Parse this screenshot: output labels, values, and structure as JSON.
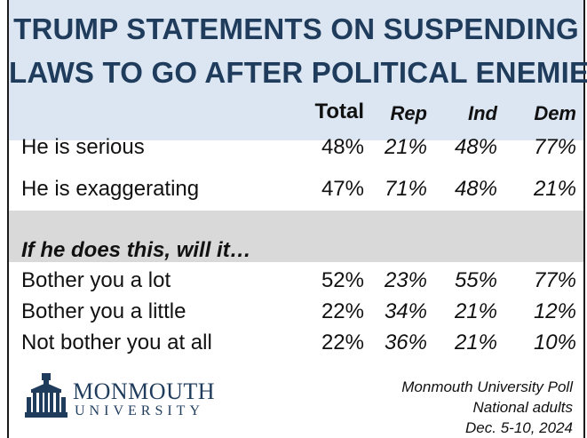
{
  "title": {
    "line1": "TRUMP STATEMENTS ON SUSPENDING",
    "line2": "LAWS TO GO AFTER POLITICAL ENEMIES"
  },
  "columns": [
    "Total",
    "Rep",
    "Ind",
    "Dem"
  ],
  "section_heading": "If he does this, will it…",
  "logo": {
    "name": "MONMOUTH",
    "sub": "UNIVERSITY",
    "icon": "monmouth-building-icon"
  },
  "source": [
    "Monmouth University Poll",
    "National adults",
    "Dec. 5-10, 2024"
  ],
  "colors": {
    "header_bg": "#dbe6f2",
    "title": "#1f3c5c",
    "band": "#d9d9d9"
  },
  "chart_data": {
    "type": "table",
    "title": "TRUMP STATEMENTS ON SUSPENDING LAWS TO GO AFTER POLITICAL ENEMIES",
    "columns": [
      "Total",
      "Rep",
      "Ind",
      "Dem"
    ],
    "rows": [
      {
        "label": "He is serious",
        "values": [
          "48%",
          "21%",
          "48%",
          "77%"
        ]
      },
      {
        "label": "He is exaggerating",
        "values": [
          "47%",
          "71%",
          "48%",
          "21%"
        ]
      },
      {
        "label": "Bother you a lot",
        "values": [
          "52%",
          "23%",
          "55%",
          "77%"
        ]
      },
      {
        "label": "Bother you a little",
        "values": [
          "22%",
          "34%",
          "21%",
          "12%"
        ]
      },
      {
        "label": "Not bother you at all",
        "values": [
          "22%",
          "36%",
          "21%",
          "10%"
        ]
      }
    ]
  }
}
